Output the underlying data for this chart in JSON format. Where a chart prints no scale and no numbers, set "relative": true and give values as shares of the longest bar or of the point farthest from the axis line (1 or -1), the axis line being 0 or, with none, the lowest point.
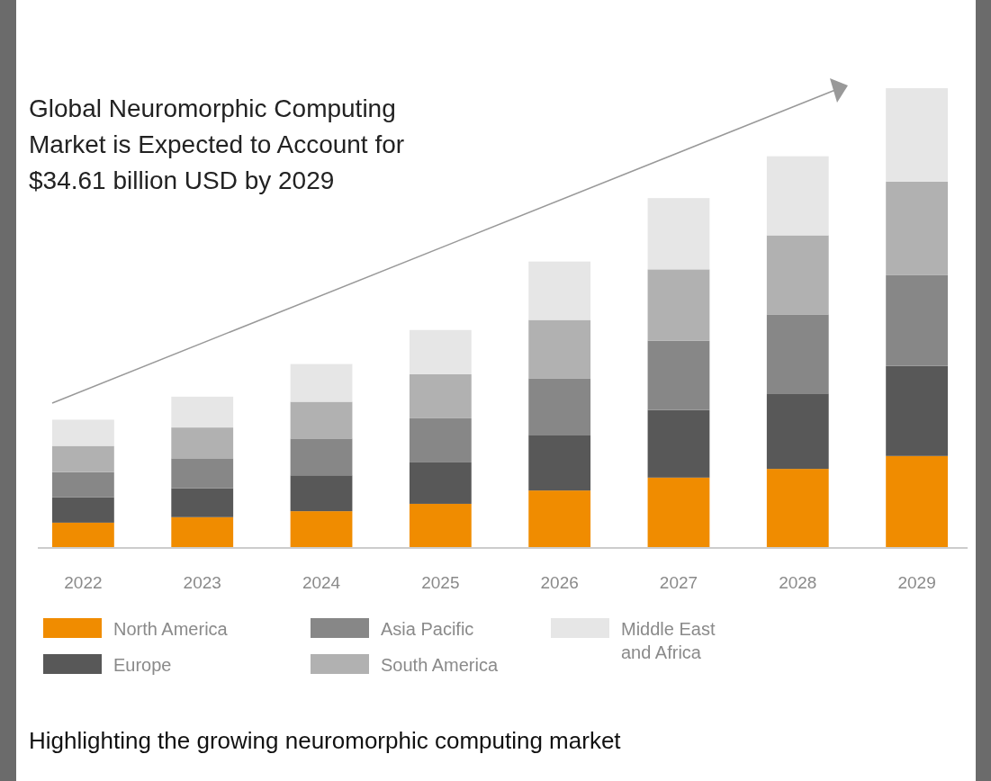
{
  "chart_data": {
    "type": "bar",
    "title": "Global Neuromorphic Computing Market is Expected to Account for $34.61 billion USD by 2029",
    "categories": [
      "2022",
      "2023",
      "2024",
      "2025",
      "2026",
      "2027",
      "2028",
      "2029"
    ],
    "stacked": true,
    "relative": true,
    "legend": "bottom",
    "series": [
      {
        "name": "North America",
        "color": "#f08c00",
        "values": [
          0.055,
          0.067,
          0.08,
          0.096,
          0.125,
          0.153,
          0.172,
          0.2
        ]
      },
      {
        "name": "Europe",
        "color": "#585858",
        "values": [
          0.055,
          0.063,
          0.078,
          0.09,
          0.121,
          0.147,
          0.164,
          0.196
        ]
      },
      {
        "name": "Asia Pacific",
        "color": "#878787",
        "values": [
          0.055,
          0.065,
          0.08,
          0.096,
          0.123,
          0.151,
          0.172,
          0.198
        ]
      },
      {
        "name": "South America",
        "color": "#b1b1b1",
        "values": [
          0.057,
          0.067,
          0.08,
          0.096,
          0.127,
          0.155,
          0.172,
          0.203
        ]
      },
      {
        "name": "Middle East and Africa",
        "color": "#e6e6e6",
        "values": [
          0.057,
          0.067,
          0.082,
          0.096,
          0.127,
          0.155,
          0.172,
          0.203
        ]
      }
    ],
    "annotations": [
      "Highlighting the growing neuromorphic computing market"
    ]
  }
}
